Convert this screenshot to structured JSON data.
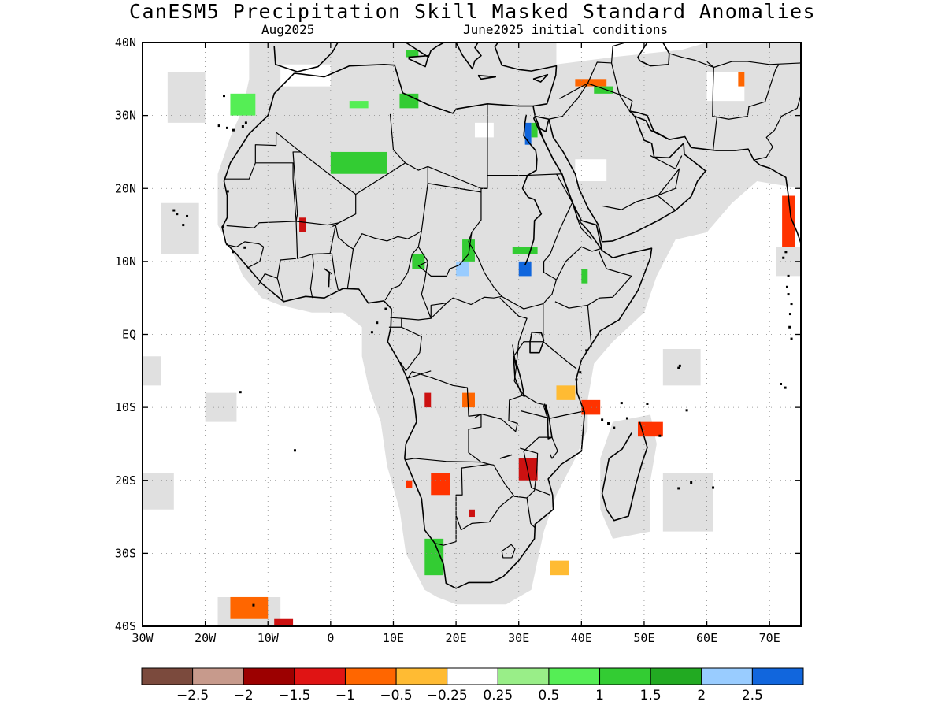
{
  "title": "CanESM5 Precipitation Skill Masked Standard Anomalies",
  "subtitle_left": "Aug2025",
  "subtitle_right": "June2025 initial conditions",
  "map": {
    "lon_range": [
      -30,
      75
    ],
    "lat_range": [
      -40,
      40
    ],
    "x_ticks": [
      "30W",
      "20W",
      "10W",
      "0",
      "10E",
      "20E",
      "30E",
      "40E",
      "50E",
      "60E",
      "70E"
    ],
    "y_ticks": [
      "40N",
      "30N",
      "20N",
      "10N",
      "EQ",
      "10S",
      "20S",
      "30S",
      "40S"
    ],
    "grid": true,
    "mask_color": "#e0e0e0",
    "patches": [
      {
        "lon": -16,
        "lat": 33,
        "w": 4,
        "h": 3,
        "color": "#55ee55"
      },
      {
        "lon": 11,
        "lat": 33,
        "w": 3,
        "h": 2,
        "color": "#33cc33"
      },
      {
        "lon": 12,
        "lat": 39,
        "w": 2,
        "h": 1,
        "color": "#33cc33"
      },
      {
        "lon": 3,
        "lat": 32,
        "w": 3,
        "h": 1,
        "color": "#55ee55"
      },
      {
        "lon": 0,
        "lat": 25,
        "w": 9,
        "h": 3,
        "color": "#33cc33"
      },
      {
        "lon": 31,
        "lat": 29,
        "w": 1,
        "h": 3,
        "color": "#1166dd"
      },
      {
        "lon": 32,
        "lat": 29,
        "w": 1,
        "h": 2,
        "color": "#33cc33"
      },
      {
        "lon": 39,
        "lat": 35,
        "w": 5,
        "h": 1,
        "color": "#ff6600"
      },
      {
        "lon": 42,
        "lat": 34,
        "w": 3,
        "h": 1,
        "color": "#33cc33"
      },
      {
        "lon": 65,
        "lat": 36,
        "w": 1,
        "h": 2,
        "color": "#ff6600"
      },
      {
        "lon": 72,
        "lat": 19,
        "w": 2,
        "h": 7,
        "color": "#ff3300"
      },
      {
        "lon": -5,
        "lat": 16,
        "w": 1,
        "h": 2,
        "color": "#cc1111"
      },
      {
        "lon": 13,
        "lat": 11,
        "w": 2,
        "h": 2,
        "color": "#33cc33"
      },
      {
        "lon": 20,
        "lat": 10,
        "w": 2,
        "h": 2,
        "color": "#99ccff"
      },
      {
        "lon": 21,
        "lat": 13,
        "w": 2,
        "h": 3,
        "color": "#33cc33"
      },
      {
        "lon": 30,
        "lat": 10,
        "w": 2,
        "h": 2,
        "color": "#1166dd"
      },
      {
        "lon": 29,
        "lat": 12,
        "w": 4,
        "h": 1,
        "color": "#33cc33"
      },
      {
        "lon": 40,
        "lat": 9,
        "w": 1,
        "h": 2,
        "color": "#33cc33"
      },
      {
        "lon": 15,
        "lat": -8,
        "w": 1,
        "h": 2,
        "color": "#cc1111"
      },
      {
        "lon": 21,
        "lat": -8,
        "w": 2,
        "h": 2,
        "color": "#ff6600"
      },
      {
        "lon": 36,
        "lat": -7,
        "w": 3,
        "h": 2,
        "color": "#ffbb33"
      },
      {
        "lon": 40,
        "lat": -9,
        "w": 3,
        "h": 2,
        "color": "#ff3300"
      },
      {
        "lon": 49,
        "lat": -12,
        "w": 4,
        "h": 2,
        "color": "#ff3300"
      },
      {
        "lon": 30,
        "lat": -17,
        "w": 3,
        "h": 3,
        "color": "#cc1111"
      },
      {
        "lon": 16,
        "lat": -19,
        "w": 3,
        "h": 3,
        "color": "#ff3300"
      },
      {
        "lon": 12,
        "lat": -20,
        "w": 1,
        "h": 1,
        "color": "#ff3300"
      },
      {
        "lon": 22,
        "lat": -24,
        "w": 1,
        "h": 1,
        "color": "#cc1111"
      },
      {
        "lon": 15,
        "lat": -28,
        "w": 3,
        "h": 5,
        "color": "#33cc33"
      },
      {
        "lon": 35,
        "lat": -31,
        "w": 3,
        "h": 2,
        "color": "#ffbb33"
      },
      {
        "lon": -16,
        "lat": -36,
        "w": 6,
        "h": 3,
        "color": "#ff6600"
      },
      {
        "lon": -9,
        "lat": -39,
        "w": 3,
        "h": 1,
        "color": "#cc1111"
      }
    ]
  },
  "colorbar": {
    "colors": [
      "#7b4a3d",
      "#c79a8c",
      "#9c0000",
      "#e01414",
      "#ff6600",
      "#ffbb33",
      "#ffffff",
      "#99ee88",
      "#55ee55",
      "#33cc33",
      "#22aa22",
      "#99ccff",
      "#1166dd"
    ],
    "labels": [
      "−2.5",
      "−2",
      "−1.5",
      "−1",
      "−0.5",
      "−0.25",
      "0.25",
      "0.5",
      "1",
      "1.5",
      "2",
      "2.5"
    ]
  }
}
